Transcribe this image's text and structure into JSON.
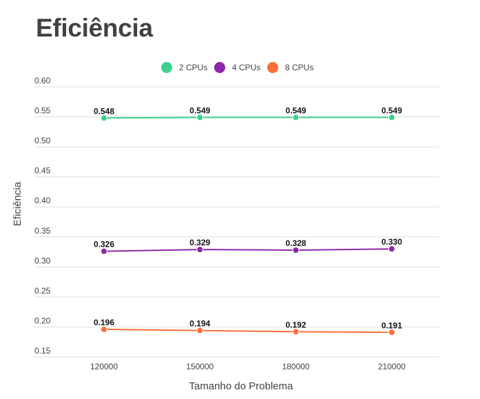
{
  "chart_data": {
    "type": "line",
    "title": "Eficiência",
    "xlabel": "Tamanho do Problema",
    "ylabel": "Eficiência",
    "categories": [
      "120000",
      "150000",
      "180000",
      "210000"
    ],
    "y_ticks": [
      "0.15",
      "0.20",
      "0.25",
      "0.30",
      "0.35",
      "0.40",
      "0.45",
      "0.50",
      "0.55",
      "0.60"
    ],
    "ylim": [
      0.15,
      0.6
    ],
    "grid": true,
    "legend_position": "top-center",
    "series": [
      {
        "name": "2 CPUs",
        "color": "#3ecf8e",
        "values": [
          0.548,
          0.549,
          0.549,
          0.549
        ],
        "labels": [
          "0.548",
          "0.549",
          "0.549",
          "0.549"
        ]
      },
      {
        "name": "4 CPUs",
        "color": "#8e24aa",
        "values": [
          0.326,
          0.329,
          0.328,
          0.33
        ],
        "labels": [
          "0.326",
          "0.329",
          "0.328",
          "0.330"
        ]
      },
      {
        "name": "8 CPUs",
        "color": "#ff6d3a",
        "values": [
          0.196,
          0.194,
          0.192,
          0.191
        ],
        "labels": [
          "0.196",
          "0.194",
          "0.192",
          "0.191"
        ]
      }
    ]
  }
}
